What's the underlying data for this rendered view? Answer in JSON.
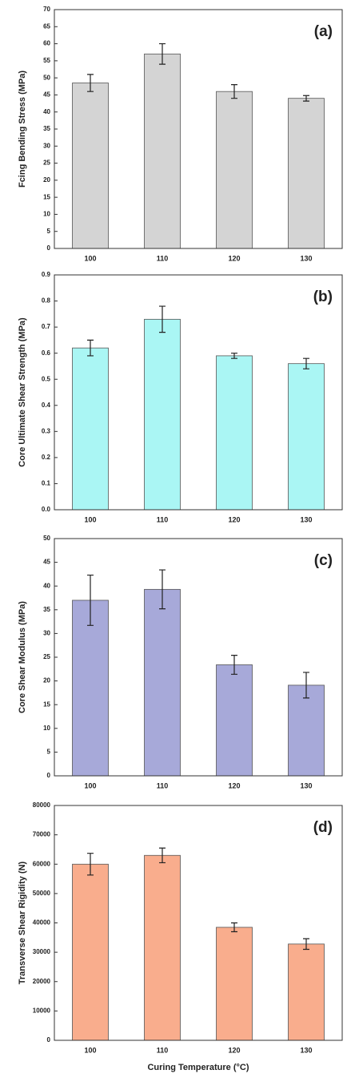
{
  "chart_data": [
    {
      "type": "bar",
      "annotation": "(a)",
      "y_label": "Fcing Bending Stress (MPa)",
      "categories": [
        "100",
        "110",
        "120",
        "130"
      ],
      "values": [
        48.5,
        57,
        46,
        44
      ],
      "errors": [
        2.5,
        3,
        2,
        0.8
      ],
      "color": "#d4d4d4",
      "ylim": [
        0,
        70
      ],
      "yticks": [
        0,
        5,
        10,
        15,
        20,
        25,
        30,
        35,
        40,
        45,
        50,
        55,
        60,
        65,
        70
      ]
    },
    {
      "type": "bar",
      "annotation": "(b)",
      "y_label": "Core Ultimate Shear Strength (MPa)",
      "categories": [
        "100",
        "110",
        "120",
        "130"
      ],
      "values": [
        0.62,
        0.73,
        0.59,
        0.56
      ],
      "errors": [
        0.03,
        0.05,
        0.01,
        0.02
      ],
      "color": "#aaf6f4",
      "ylim": [
        0,
        0.9
      ],
      "yticks": [
        {
          "value": 0,
          "label": "0.0"
        },
        0.1,
        0.2,
        0.3,
        0.4,
        0.5,
        0.6,
        0.7,
        0.8,
        0.9
      ]
    },
    {
      "type": "bar",
      "annotation": "(c)",
      "y_label": "Core Shear Modulus (MPa)",
      "categories": [
        "100",
        "110",
        "120",
        "130"
      ],
      "values": [
        37,
        39.3,
        23.4,
        19.1
      ],
      "errors": [
        5.3,
        4.1,
        2,
        2.7
      ],
      "color": "#a7a9d9",
      "ylim": [
        0,
        50
      ],
      "yticks": [
        0,
        5,
        10,
        15,
        20,
        25,
        30,
        35,
        40,
        45,
        50
      ]
    },
    {
      "type": "bar",
      "annotation": "(d)",
      "y_label": "Transverse Shear Rigidity (N)",
      "x_label": "Curing Temperature (°C)",
      "categories": [
        "100",
        "110",
        "120",
        "130"
      ],
      "values": [
        60000,
        63000,
        38500,
        32800
      ],
      "errors": [
        3700,
        2500,
        1500,
        1800
      ],
      "color": "#f9ad8d",
      "ylim": [
        0,
        80000
      ],
      "yticks": [
        0,
        10000,
        20000,
        30000,
        40000,
        50000,
        60000,
        70000,
        80000
      ]
    }
  ]
}
